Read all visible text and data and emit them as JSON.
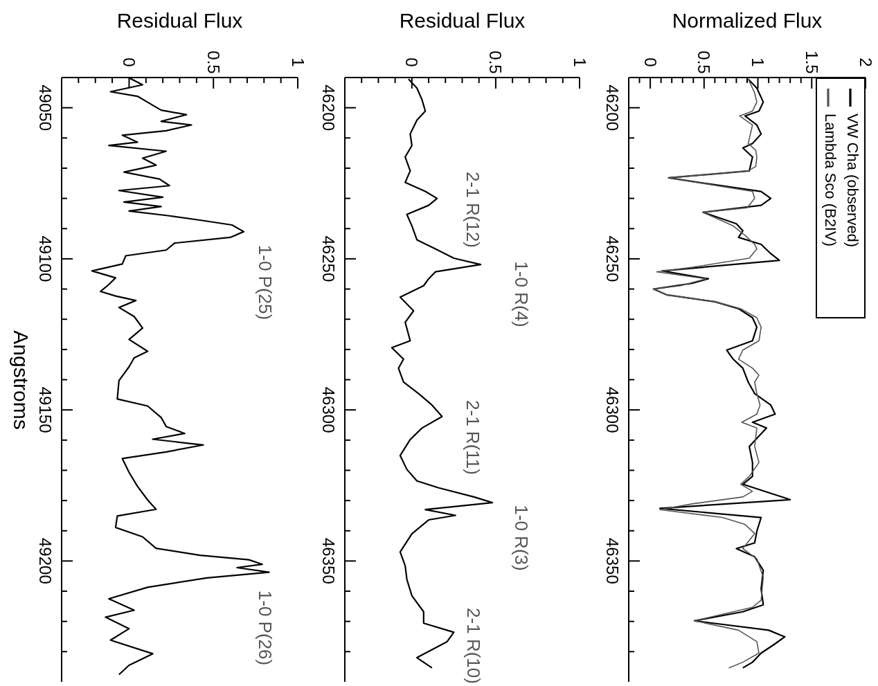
{
  "chart_data": [
    {
      "type": "line",
      "xlabel": "Residual Flux",
      "ylabel": "Angstroms",
      "xlim": [
        -0.4,
        1
      ],
      "ylim": [
        49240,
        49040
      ],
      "xticks": [
        {
          "value": -0.3,
          "label": null
        },
        {
          "value": -0.2,
          "label": null
        },
        {
          "value": -0.1,
          "label": null
        },
        0,
        {
          "value": 0.1,
          "label": null
        },
        {
          "value": 0.2,
          "label": null
        },
        {
          "value": 0.3,
          "label": null
        },
        {
          "value": 0.4,
          "label": null
        },
        0.5,
        {
          "value": 0.6,
          "label": null
        },
        {
          "value": 0.7,
          "label": null
        },
        {
          "value": 0.8,
          "label": null
        },
        {
          "value": 0.9,
          "label": null
        },
        1
      ],
      "yticks": [
        49050,
        {
          "value": 49060,
          "label": null
        },
        {
          "value": 49070,
          "label": null
        },
        {
          "value": 49080,
          "label": null
        },
        {
          "value": 49090,
          "label": null
        },
        49100,
        {
          "value": 49110,
          "label": null
        },
        {
          "value": 49120,
          "label": null
        },
        {
          "value": 49130,
          "label": null
        },
        {
          "value": 49140,
          "label": null
        },
        49150,
        {
          "value": 49160,
          "label": null
        },
        {
          "value": 49170,
          "label": null
        },
        {
          "value": 49180,
          "label": null
        },
        {
          "value": 49190,
          "label": null
        },
        49200,
        {
          "value": 49210,
          "label": null
        },
        {
          "value": 49220,
          "label": null
        },
        {
          "value": 49230,
          "label": null
        }
      ],
      "annotations": [
        "1-0 P(25)",
        "1-0 P(26)"
      ],
      "series": [
        {
          "color": "#000000",
          "x": [
            0.0,
            0.08,
            -0.11,
            0.05,
            0.12,
            0.19,
            0.34,
            0.19,
            0.37,
            0.22,
            -0.04,
            0.05,
            -0.12,
            0.22,
            0.08,
            0.16,
            -0.03,
            0.18,
            0.24,
            -0.06,
            0.2,
            -0.03,
            0.19,
            0.0,
            0.23,
            0.42,
            0.61,
            0.68,
            0.6,
            0.27,
            0.22,
            -0.02,
            -0.04,
            -0.22,
            -0.08,
            -0.12,
            -0.17,
            -0.08,
            0.04,
            -0.06,
            0.03,
            0.08,
            0.0,
            0.11,
            0.03,
            0.0,
            -0.06,
            -0.07,
            0.11,
            0.19,
            0.22,
            0.33,
            0.14,
            0.44,
            0.22,
            -0.04,
            0.0,
            0.05,
            0.11,
            0.16,
            -0.07,
            -0.08,
            0.08,
            0.16,
            0.42,
            0.71,
            0.79,
            0.64,
            0.83,
            0.46,
            0.11,
            -0.12,
            0.03,
            -0.14,
            0.0,
            -0.11,
            0.14,
            0.0,
            -0.06
          ],
          "values": [
            49040.1,
            49042.4,
            49044.7,
            49046.2,
            49048.5,
            49050.8,
            49052.3,
            49054.5,
            49055.7,
            49057.6,
            49059.1,
            49061.4,
            49062.5,
            49064.4,
            49066.7,
            49069.0,
            49071.3,
            49073.6,
            49075.8,
            49077.4,
            49079.6,
            49081.2,
            49082.7,
            49084.2,
            49085.7,
            49087.2,
            49088.8,
            49091.0,
            49092.9,
            49094.8,
            49097.1,
            49099.0,
            49101.7,
            49104.0,
            49106.3,
            49108.5,
            49110.8,
            49112.3,
            49113.8,
            49116.1,
            49119.1,
            49122.9,
            49126.7,
            49130.6,
            49132.8,
            49135.7,
            49140.3,
            49146.4,
            49148.7,
            49152.5,
            49155.5,
            49157.8,
            49159.7,
            49161.6,
            49163.9,
            49166.1,
            49170.7,
            49175.3,
            49179.8,
            49182.9,
            49185.1,
            49188.9,
            49192.0,
            49195.8,
            49198.1,
            49199.6,
            49201.1,
            49202.2,
            49203.7,
            49205.6,
            49208.7,
            49212.5,
            49216.3,
            49218.6,
            49222.4,
            49226.2,
            49230.7,
            49234.5,
            49237.6
          ]
        }
      ]
    },
    {
      "type": "line",
      "xlabel": "Residual Flux",
      "xlim": [
        -0.4,
        1
      ],
      "ylim": [
        46390,
        46190
      ],
      "xticks": [
        {
          "value": -0.3,
          "label": null
        },
        {
          "value": -0.2,
          "label": null
        },
        {
          "value": -0.1,
          "label": null
        },
        0,
        {
          "value": 0.1,
          "label": null
        },
        {
          "value": 0.2,
          "label": null
        },
        {
          "value": 0.3,
          "label": null
        },
        {
          "value": 0.4,
          "label": null
        },
        0.5,
        {
          "value": 0.6,
          "label": null
        },
        {
          "value": 0.7,
          "label": null
        },
        {
          "value": 0.8,
          "label": null
        },
        {
          "value": 0.9,
          "label": null
        },
        1
      ],
      "yticks": [
        46200,
        {
          "value": 46210,
          "label": null
        },
        {
          "value": 46220,
          "label": null
        },
        {
          "value": 46230,
          "label": null
        },
        {
          "value": 46240,
          "label": null
        },
        46250,
        {
          "value": 46260,
          "label": null
        },
        {
          "value": 46270,
          "label": null
        },
        {
          "value": 46280,
          "label": null
        },
        {
          "value": 46290,
          "label": null
        },
        46300,
        {
          "value": 46310,
          "label": null
        },
        {
          "value": 46320,
          "label": null
        },
        {
          "value": 46330,
          "label": null
        },
        {
          "value": 46340,
          "label": null
        },
        46350,
        {
          "value": 46360,
          "label": null
        },
        {
          "value": 46370,
          "label": null
        },
        {
          "value": 46380,
          "label": null
        }
      ],
      "annotations": [
        "2-1 R(12)",
        "1-0 R(4)",
        "2-1 R(11)",
        "1-0 R(3)",
        "2-1 R(10)"
      ],
      "series": [
        {
          "color": "#000000",
          "x": [
            -0.02,
            0.03,
            0.06,
            0.08,
            0.03,
            -0.01,
            0.0,
            -0.04,
            -0.01,
            -0.04,
            0.08,
            0.15,
            0.1,
            -0.03,
            0.0,
            0.03,
            0.14,
            0.25,
            0.41,
            0.14,
            0.1,
            0.07,
            -0.07,
            0.01,
            -0.04,
            -0.01,
            -0.12,
            -0.05,
            -0.08,
            -0.05,
            0.04,
            0.12,
            0.18,
            0.06,
            -0.01,
            -0.07,
            -0.03,
            0.03,
            0.16,
            0.37,
            0.48,
            0.08,
            0.26,
            0.1,
            0.0,
            -0.07,
            -0.04,
            -0.03,
            0.0,
            0.07,
            0.07,
            0.25,
            0.21,
            0.03,
            0.12
          ],
          "values": [
            46190.5,
            46193.5,
            46197.3,
            46201.1,
            46204.1,
            46208.7,
            46212.5,
            46216.3,
            46220.9,
            46224.7,
            46227.7,
            46230.0,
            46232.3,
            46235.3,
            46239.1,
            46243.7,
            46246.7,
            46249.8,
            46251.9,
            46254.3,
            46256.6,
            46258.9,
            46262.7,
            46267.2,
            46271.0,
            46277.1,
            46279.4,
            46283.2,
            46286.2,
            46290.8,
            46294.6,
            46298.4,
            46302.2,
            46306.0,
            46309.8,
            46315.1,
            46319.7,
            46323.5,
            46325.8,
            46328.8,
            46330.7,
            46333.0,
            46334.9,
            46336.4,
            46341.0,
            46347.0,
            46351.6,
            46356.1,
            46361.5,
            46366.8,
            46370.6,
            46373.6,
            46376.7,
            46382.0,
            46385.4
          ]
        }
      ]
    },
    {
      "type": "line",
      "xlabel": "Normalized Flux",
      "legend": "top right",
      "xlim": [
        -0.2,
        2
      ],
      "ylim": [
        46390,
        46190
      ],
      "xticks": [
        {
          "value": -0.1,
          "label": null
        },
        0,
        {
          "value": 0.1,
          "label": null
        },
        {
          "value": 0.2,
          "label": null
        },
        {
          "value": 0.3,
          "label": null
        },
        {
          "value": 0.4,
          "label": null
        },
        0.5,
        {
          "value": 0.6,
          "label": null
        },
        {
          "value": 0.7,
          "label": null
        },
        {
          "value": 0.8,
          "label": null
        },
        {
          "value": 0.9,
          "label": null
        },
        1,
        {
          "value": 1.1,
          "label": null
        },
        {
          "value": 1.2,
          "label": null
        },
        {
          "value": 1.3,
          "label": null
        },
        {
          "value": 1.4,
          "label": null
        },
        1.5,
        {
          "value": 1.6,
          "label": null
        },
        {
          "value": 1.7,
          "label": null
        },
        {
          "value": 1.8,
          "label": null
        },
        {
          "value": 1.9,
          "label": null
        },
        2
      ],
      "yticks": [
        46200,
        {
          "value": 46210,
          "label": null
        },
        {
          "value": 46220,
          "label": null
        },
        {
          "value": 46230,
          "label": null
        },
        {
          "value": 46240,
          "label": null
        },
        46250,
        {
          "value": 46260,
          "label": null
        },
        {
          "value": 46270,
          "label": null
        },
        {
          "value": 46280,
          "label": null
        },
        {
          "value": 46290,
          "label": null
        },
        46300,
        {
          "value": 46310,
          "label": null
        },
        {
          "value": 46320,
          "label": null
        },
        {
          "value": 46330,
          "label": null
        },
        {
          "value": 46340,
          "label": null
        },
        46350,
        {
          "value": 46360,
          "label": null
        },
        {
          "value": 46370,
          "label": null
        },
        {
          "value": 46380,
          "label": null
        }
      ],
      "series": [
        {
          "name": "VW Cha (observed)",
          "color": "#000000",
          "x": [
            0.91,
            0.99,
            1.05,
            1.01,
            0.88,
            0.99,
            1.03,
            0.95,
            0.86,
            0.95,
            0.92,
            0.17,
            0.6,
            1.03,
            1.12,
            1.03,
            0.49,
            0.8,
            0.86,
            0.82,
            1.03,
            1.12,
            1.2,
            0.11,
            0.54,
            0.39,
            0.03,
            0.15,
            0.6,
            0.82,
            0.95,
            0.99,
            0.95,
            0.71,
            0.77,
            0.86,
            0.91,
            0.97,
            1.12,
            1.16,
            0.95,
            1.08,
            0.92,
            0.95,
            0.95,
            0.86,
            1.3,
            0.09,
            1.03,
            0.99,
            0.97,
            0.8,
            0.97,
            1.05,
            1.03,
            1.05,
            0.86,
            0.41,
            1.1,
            1.25,
            1.16,
            1.03,
            0.95,
            0.86
          ],
          "values": [
            46190.5,
            46193.5,
            46198.1,
            46201.1,
            46202.7,
            46205.7,
            46208.7,
            46211.8,
            46213.3,
            46216.3,
            46220.9,
            46223.2,
            46225.5,
            46227.7,
            46230.0,
            46232.3,
            46234.6,
            46238.4,
            46240.7,
            46242.9,
            46245.2,
            46248.3,
            46250.5,
            46254.0,
            46256.6,
            46258.1,
            46260.0,
            46261.9,
            46264.2,
            46266.5,
            46269.5,
            46272.6,
            46277.1,
            46280.2,
            46283.2,
            46286.2,
            46290.8,
            46294.6,
            46298.4,
            46301.4,
            46304.1,
            46306.0,
            46312.1,
            46317.4,
            46322.0,
            46324.6,
            46329.7,
            46332.6,
            46335.6,
            46340.2,
            46344.0,
            46345.9,
            46348.6,
            46353.1,
            46359.2,
            46364.5,
            46366.8,
            46369.8,
            46372.9,
            46375.1,
            46377.4,
            46380.5,
            46383.5,
            46385.4
          ]
        },
        {
          "name": "Lambda Sco (B2IV)",
          "color": "#555555",
          "x": [
            0.91,
            0.97,
            0.99,
            0.95,
            0.83,
            0.95,
            0.91,
            0.98,
            0.99,
            0.98,
            0.91,
            0.17,
            0.95,
            0.97,
            0.9,
            0.49,
            0.77,
            0.88,
            0.97,
            0.99,
            0.92,
            0.39,
            0.06,
            0.52,
            0.28,
            0.03,
            0.15,
            0.6,
            0.84,
            0.99,
            1.03,
            1.01,
            0.86,
            0.82,
            0.95,
            1.01,
            0.97,
            0.99,
            1.02,
            0.99,
            0.85,
            0.99,
            0.97,
            1.01,
            0.92,
            0.84,
            0.95,
            0.86,
            0.39,
            0.09,
            0.67,
            0.88,
            0.97,
            0.86,
            0.99,
            1.05,
            1.03,
            0.95,
            0.41,
            0.82,
            0.99,
            1.01,
            0.86,
            0.73
          ],
          "values": [
            46190.5,
            46195.1,
            46198.1,
            46201.1,
            46202.7,
            46205.7,
            46211.8,
            46214.1,
            46216.3,
            46219.4,
            46220.9,
            46223.2,
            46227.7,
            46230.0,
            46233.1,
            46234.6,
            46239.1,
            46242.2,
            46245.2,
            46246.7,
            46249.8,
            46252.8,
            46254.3,
            46256.6,
            46258.9,
            46260.0,
            46261.9,
            46264.2,
            46266.5,
            46269.5,
            46272.6,
            46277.1,
            46280.2,
            46283.2,
            46286.2,
            46288.5,
            46290.8,
            46294.6,
            46298.4,
            46301.4,
            46304.1,
            46306.0,
            46312.1,
            46317.4,
            46322.0,
            46324.6,
            46326.9,
            46328.8,
            46331.1,
            46333.0,
            46335.6,
            46337.9,
            46340.9,
            46345.9,
            46349.3,
            46355.4,
            46363.0,
            46365.3,
            46369.8,
            46372.9,
            46376.7,
            46380.5,
            46383.5,
            46385.4
          ]
        }
      ]
    }
  ]
}
